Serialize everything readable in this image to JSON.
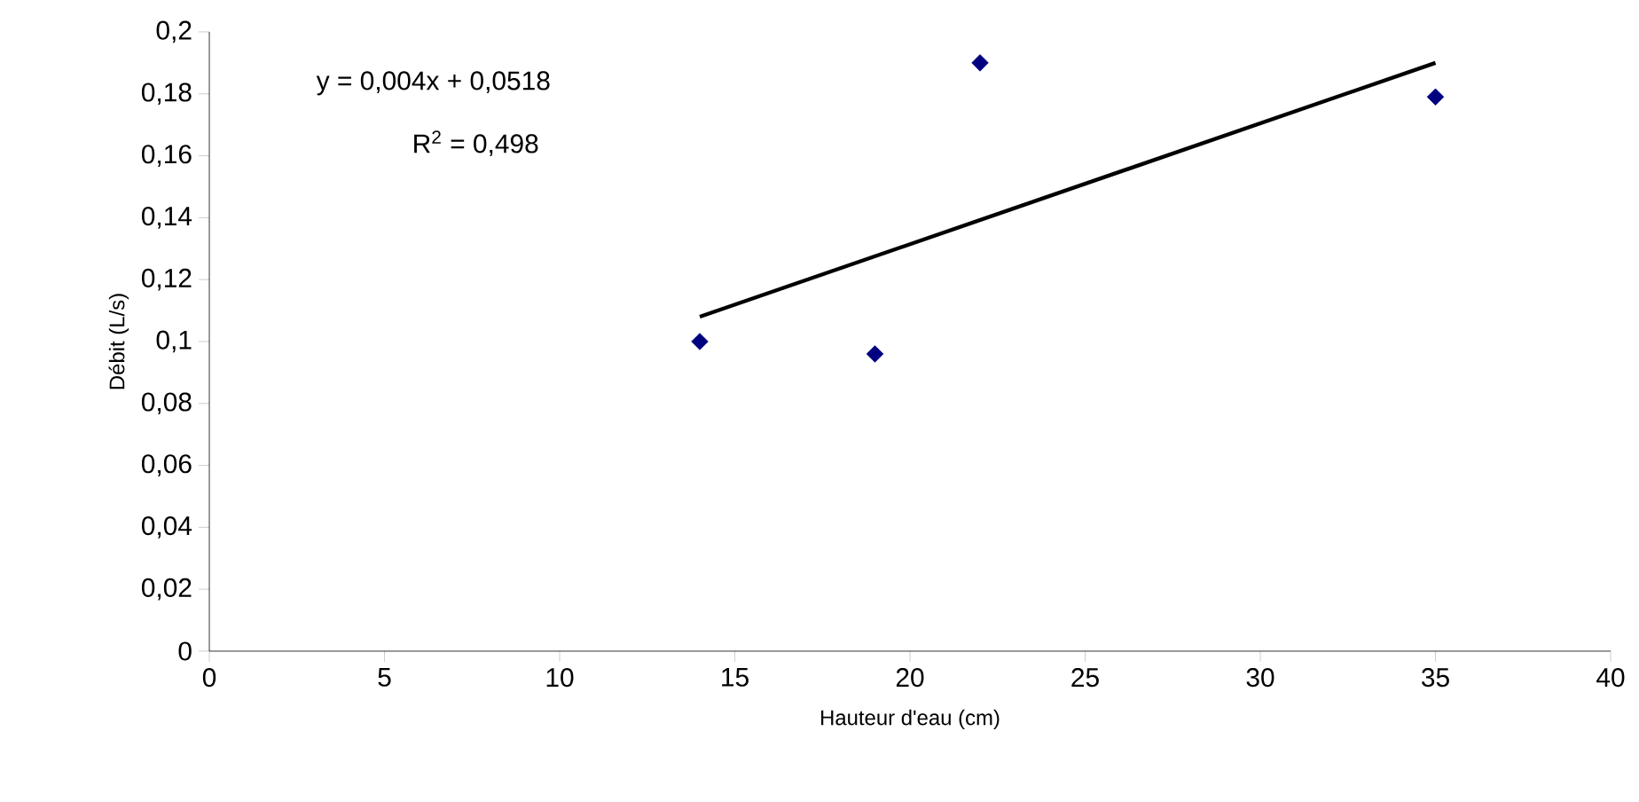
{
  "chart_data": {
    "type": "scatter",
    "xlabel": "Hauteur d'eau (cm)",
    "ylabel": "Débit (L/s)",
    "series": [
      {
        "color": "#000080",
        "marker": "diamond",
        "x": [
          14,
          19,
          22,
          35
        ],
        "values": [
          0.1,
          0.096,
          0.19,
          0.179
        ]
      },
      {
        "type": "line",
        "color": "#000000",
        "marker": "none",
        "x": [
          14,
          35
        ],
        "values": [
          0.108,
          0.19
        ]
      }
    ],
    "annotations": [
      "y = 0,004x + 0,0518",
      "R$^{2}$ = 0,498"
    ],
    "xlim": [
      0,
      40
    ],
    "xticks": [
      0,
      5,
      10,
      15,
      20,
      25,
      30,
      35,
      40
    ],
    "ylim": [
      0,
      0.2
    ],
    "yticks": [
      {
        "value": 0,
        "label": "0"
      },
      {
        "value": 0.02,
        "label": "0,02"
      },
      {
        "value": 0.04,
        "label": "0,04"
      },
      {
        "value": 0.06,
        "label": "0,06"
      },
      {
        "value": 0.08,
        "label": "0,08"
      },
      {
        "value": 0.1,
        "label": "0,1"
      },
      {
        "value": 0.12,
        "label": "0,12"
      },
      {
        "value": 0.14,
        "label": "0,14"
      },
      {
        "value": 0.16,
        "label": "0,16"
      },
      {
        "value": 0.18,
        "label": "0,18"
      },
      {
        "value": 0.2,
        "label": "0,2"
      }
    ],
    "grid": false
  }
}
